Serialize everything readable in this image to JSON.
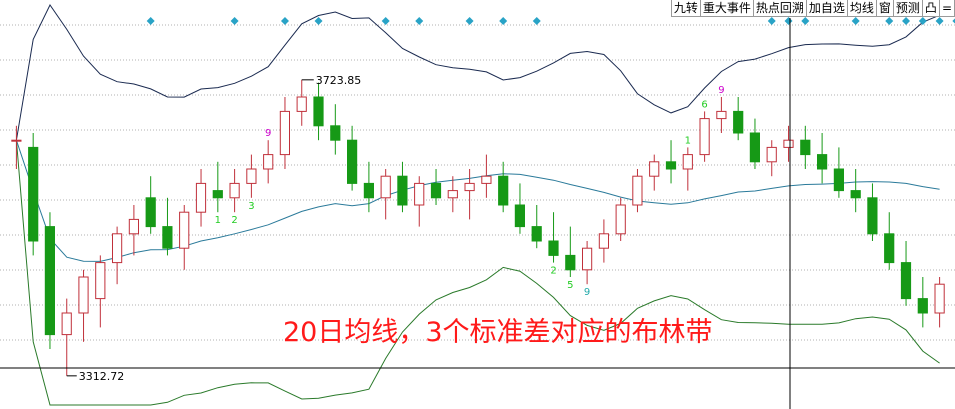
{
  "toolbar": {
    "buttons": [
      "九转",
      "重大事件",
      "热点回溯",
      "加自选",
      "均线",
      "窗",
      "预测",
      "凸",
      "="
    ]
  },
  "annotation": "20日均线，3个标准差对应的布林带",
  "colors": {
    "up": "#c0303a",
    "down": "#169916",
    "ma": "#2a7a9a",
    "upper_band": "#1a2a50",
    "lower_band": "#2a7a2a",
    "signal_green": "#22cc22",
    "signal_magenta": "#cc00cc",
    "signal_cyan": "#22aaaa",
    "event_marker": "#29a3c6",
    "annotation": "#ff1a1a"
  },
  "chart_data": {
    "type": "candlestick",
    "high_label": "3723.85",
    "low_label": "3312.72",
    "price_range": [
      3300,
      3800
    ],
    "candles": [
      [
        3640,
        3660,
        3600,
        3640
      ],
      [
        3630,
        3650,
        3480,
        3500
      ],
      [
        3520,
        3540,
        3350,
        3370
      ],
      [
        3370,
        3420,
        3312.72,
        3400
      ],
      [
        3400,
        3460,
        3360,
        3450
      ],
      [
        3420,
        3480,
        3380,
        3470
      ],
      [
        3470,
        3520,
        3440,
        3510
      ],
      [
        3510,
        3550,
        3480,
        3530
      ],
      [
        3560,
        3590,
        3510,
        3520
      ],
      [
        3520,
        3560,
        3480,
        3490
      ],
      [
        3490,
        3550,
        3460,
        3540
      ],
      [
        3540,
        3600,
        3520,
        3580
      ],
      [
        3570,
        3610,
        3540,
        3560
      ],
      [
        3560,
        3600,
        3540,
        3580
      ],
      [
        3580,
        3620,
        3560,
        3600
      ],
      [
        3600,
        3640,
        3580,
        3620
      ],
      [
        3620,
        3700,
        3600,
        3680
      ],
      [
        3680,
        3723.85,
        3660,
        3700
      ],
      [
        3700,
        3720,
        3640,
        3660
      ],
      [
        3660,
        3690,
        3620,
        3640
      ],
      [
        3640,
        3660,
        3570,
        3580
      ],
      [
        3580,
        3610,
        3540,
        3560
      ],
      [
        3560,
        3600,
        3530,
        3590
      ],
      [
        3590,
        3610,
        3540,
        3550
      ],
      [
        3550,
        3590,
        3520,
        3580
      ],
      [
        3580,
        3600,
        3550,
        3560
      ],
      [
        3560,
        3590,
        3540,
        3570
      ],
      [
        3570,
        3600,
        3530,
        3580
      ],
      [
        3580,
        3620,
        3560,
        3590
      ],
      [
        3590,
        3610,
        3540,
        3550
      ],
      [
        3550,
        3580,
        3510,
        3520
      ],
      [
        3520,
        3550,
        3490,
        3500
      ],
      [
        3500,
        3540,
        3470,
        3480
      ],
      [
        3480,
        3520,
        3450,
        3460
      ],
      [
        3460,
        3500,
        3440,
        3490
      ],
      [
        3490,
        3530,
        3470,
        3510
      ],
      [
        3510,
        3560,
        3500,
        3550
      ],
      [
        3550,
        3600,
        3540,
        3590
      ],
      [
        3590,
        3620,
        3570,
        3610
      ],
      [
        3610,
        3640,
        3580,
        3600
      ],
      [
        3600,
        3630,
        3570,
        3620
      ],
      [
        3620,
        3680,
        3610,
        3670
      ],
      [
        3670,
        3700,
        3650,
        3680
      ],
      [
        3680,
        3700,
        3640,
        3650
      ],
      [
        3650,
        3670,
        3600,
        3610
      ],
      [
        3610,
        3640,
        3590,
        3630
      ],
      [
        3630,
        3660,
        3610,
        3640
      ],
      [
        3640,
        3660,
        3600,
        3620
      ],
      [
        3620,
        3650,
        3580,
        3600
      ],
      [
        3600,
        3630,
        3560,
        3570
      ],
      [
        3570,
        3600,
        3540,
        3560
      ],
      [
        3560,
        3580,
        3500,
        3510
      ],
      [
        3510,
        3540,
        3460,
        3470
      ],
      [
        3470,
        3500,
        3410,
        3420
      ],
      [
        3420,
        3450,
        3380,
        3400
      ],
      [
        3400,
        3450,
        3380,
        3440
      ]
    ],
    "signals": [
      {
        "candle": 12,
        "label": "1",
        "color": "green",
        "pos": "below"
      },
      {
        "candle": 13,
        "label": "2",
        "color": "green",
        "pos": "below"
      },
      {
        "candle": 14,
        "label": "3",
        "color": "green",
        "pos": "below"
      },
      {
        "candle": 15,
        "label": "9",
        "color": "magenta",
        "pos": "above"
      },
      {
        "candle": 32,
        "label": "2",
        "color": "green",
        "pos": "below"
      },
      {
        "candle": 33,
        "label": "5",
        "color": "green",
        "pos": "below"
      },
      {
        "candle": 34,
        "label": "9",
        "color": "cyan",
        "pos": "below"
      },
      {
        "candle": 40,
        "label": "1",
        "color": "green",
        "pos": "above"
      },
      {
        "candle": 41,
        "label": "6",
        "color": "green",
        "pos": "above"
      },
      {
        "candle": 42,
        "label": "9",
        "color": "magenta",
        "pos": "above"
      }
    ],
    "event_markers": [
      8,
      13,
      16,
      18,
      22,
      24,
      27,
      29,
      31,
      45,
      46,
      47,
      50,
      52,
      53,
      54,
      55,
      56,
      57,
      59
    ]
  }
}
